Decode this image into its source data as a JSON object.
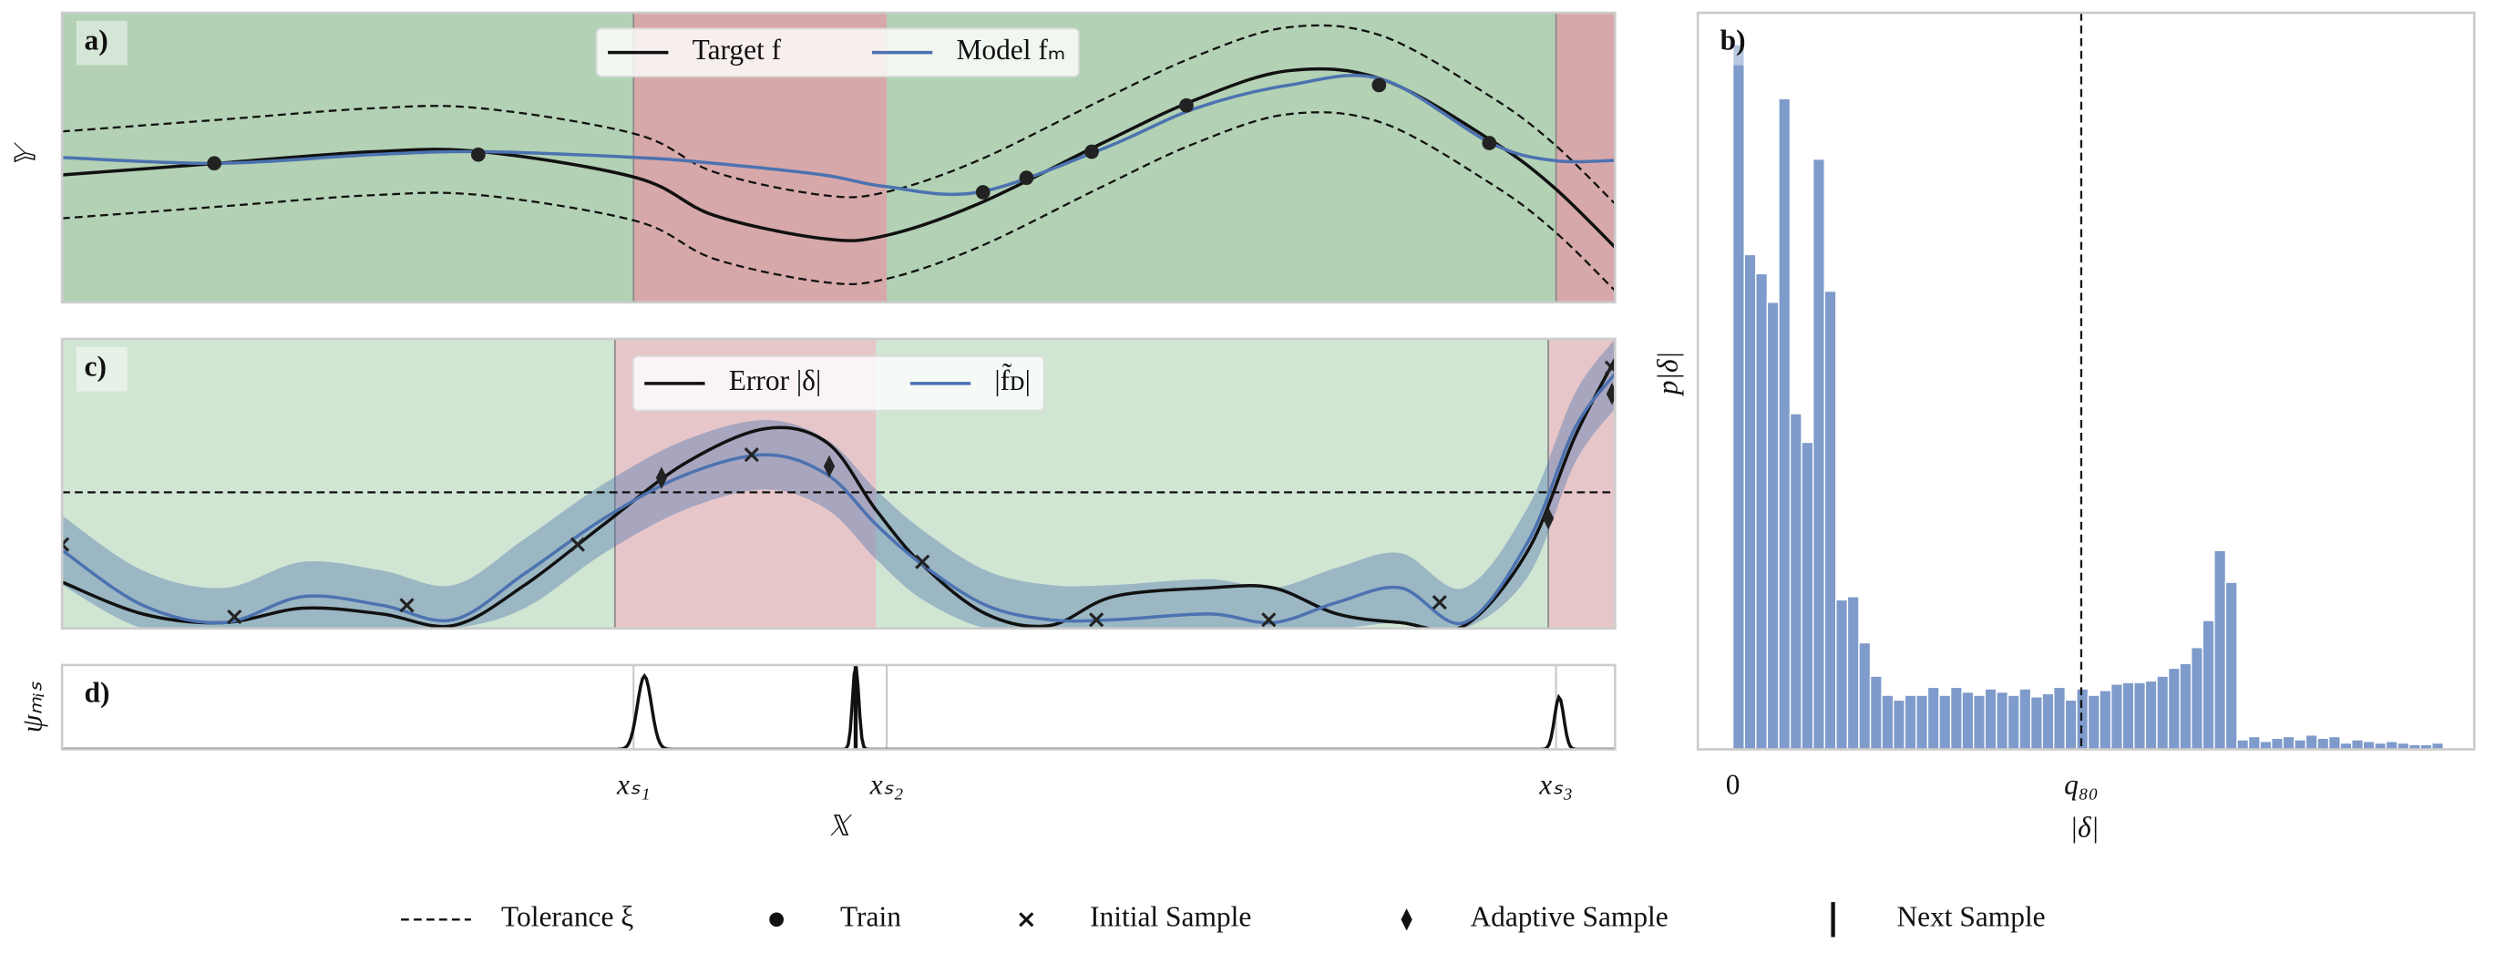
{
  "chart_data": [
    {
      "type": "line",
      "title": "a)",
      "ylabel": "𝕐",
      "xlim": [
        0,
        100
      ],
      "ylim": [
        0,
        100
      ],
      "background": "#b3d1b4",
      "legend": "upper center",
      "regions": [
        {
          "start": 36.8,
          "end": 53.1,
          "color": "#d7a8aa"
        },
        {
          "start": 96.2,
          "end": 100,
          "color": "#d7a8aa"
        }
      ],
      "x": [
        0,
        10,
        20,
        27,
        37,
        42,
        49,
        53,
        59,
        67,
        73,
        79,
        85,
        92,
        96,
        100
      ],
      "series": [
        {
          "name": "Target f",
          "color": "#111111",
          "values": [
            44,
            48,
            52,
            52,
            43,
            30,
            22,
            23,
            34,
            55,
            70,
            80,
            77,
            56,
            40,
            19
          ]
        },
        {
          "name": "Model fₘ",
          "color": "#4c72b0",
          "values": [
            50,
            48,
            51,
            52,
            50,
            48,
            44,
            40,
            38,
            53,
            67,
            75,
            77,
            55,
            49,
            49
          ]
        }
      ],
      "tolerance": 15,
      "train": {
        "x": [
          9.8,
          26.8,
          59.3,
          62.1,
          66.3,
          72.4,
          84.8,
          91.9
        ],
        "y": [
          48,
          51,
          38,
          43,
          52,
          68,
          75,
          55
        ]
      }
    },
    {
      "type": "line",
      "title": "c)",
      "xlim": [
        0,
        100
      ],
      "ylim": [
        0,
        100
      ],
      "background": "#d1e5d3",
      "legend": "upper center",
      "regions": [
        {
          "start": 35.6,
          "end": 52.4,
          "color": "#e6c6c9"
        },
        {
          "start": 95.7,
          "end": 100,
          "color": "#e6c6c9"
        }
      ],
      "x": [
        0,
        5.2,
        10.4,
        15.5,
        20.6,
        25.2,
        29.8,
        34.9,
        40.1,
        45.3,
        49.3,
        52.4,
        55.4,
        59.5,
        63.6,
        67.7,
        73.9,
        78,
        82.1,
        86.2,
        90.3,
        94.4,
        97.4,
        100
      ],
      "series": [
        {
          "name": "Error |δ|",
          "color": "#111111",
          "values": [
            16,
            5,
            2,
            7,
            5,
            1,
            15,
            36,
            57,
            69,
            64,
            41,
            22,
            5,
            1,
            11,
            14,
            14,
            5,
            2,
            1,
            27,
            66,
            93
          ]
        },
        {
          "name": "|f̃ᴅ|",
          "color": "#4c72b0",
          "values": [
            27,
            8,
            2,
            11,
            8,
            3,
            19,
            38,
            53,
            60,
            53,
            36,
            22,
            8,
            3,
            3,
            5,
            2,
            9,
            14,
            2,
            30,
            69,
            88
          ]
        }
      ],
      "uncertainty": 12,
      "threshold": 47,
      "initial_samples": {
        "x": [
          0,
          11.1,
          22.2,
          33.2,
          44.4,
          55.4,
          66.6,
          77.7,
          88.7,
          99.8
        ],
        "y": [
          29,
          4,
          8,
          29,
          60,
          23,
          3,
          3,
          9,
          90
        ]
      },
      "adaptive_samples": {
        "x": [
          38.6,
          49.4,
          95.7,
          99.8
        ],
        "y": [
          52,
          56,
          38,
          81
        ]
      }
    },
    {
      "type": "density",
      "title": "d)",
      "ylabel": "ψₘᵢₛ",
      "xlabel": "𝕏",
      "xlim": [
        0,
        100
      ],
      "ylim": [
        0,
        1
      ],
      "xticks": [
        {
          "value": 36.8,
          "label": "xₛ₁"
        },
        {
          "value": 53.1,
          "label": "xₛ₂"
        },
        {
          "value": 96.2,
          "label": "xₛ₃"
        }
      ],
      "peaks": [
        {
          "center": 37.5,
          "height": 0.87,
          "width": 0.45
        },
        {
          "center": 51.1,
          "height": 1.0,
          "width": 0.2
        },
        {
          "center": 96.4,
          "height": 0.62,
          "width": 0.3
        }
      ],
      "next_sample": 51.1
    },
    {
      "type": "histogram",
      "title": "b)",
      "ylabel": "p|δ|",
      "xlabel": "|δ|",
      "xlim": [
        -3.06,
        64.7
      ],
      "ylim": [
        0,
        463
      ],
      "color": "#7f9bcb",
      "xticks": [
        0,
        {
          "value": 30.4,
          "label": "q₈₀"
        }
      ],
      "bins": [
        0,
        1,
        2,
        3,
        4,
        5,
        6,
        7,
        8,
        9,
        10,
        11,
        12,
        13,
        14,
        15,
        16,
        17,
        18,
        19,
        20,
        21,
        22,
        23,
        24,
        25,
        26,
        27,
        28,
        29,
        30,
        31,
        32,
        33,
        34,
        35,
        36,
        37,
        38,
        39,
        40,
        41,
        42,
        43,
        44,
        45,
        46,
        47,
        48,
        49,
        50,
        51,
        52,
        53,
        54,
        55,
        56,
        57,
        58,
        59,
        60,
        61,
        62
      ],
      "values": [
        443,
        311,
        299,
        281,
        409,
        211,
        193,
        371,
        288,
        94,
        96,
        67,
        46,
        34,
        31,
        34,
        34,
        39,
        34,
        39,
        36,
        34,
        38,
        36,
        34,
        38,
        33,
        35,
        39,
        31,
        38,
        34,
        37,
        41,
        42,
        42,
        43,
        46,
        51,
        54,
        64,
        81,
        125,
        105,
        6,
        8,
        5,
        7,
        8,
        6,
        9,
        7,
        8,
        4,
        6,
        5,
        4,
        5,
        4,
        3,
        3,
        4
      ]
    }
  ],
  "legend": {
    "entries": [
      {
        "label": "Tolerance ξ",
        "marker": "dashed"
      },
      {
        "label": "Train",
        "marker": "dot"
      },
      {
        "label": "Initial Sample",
        "marker": "cross"
      },
      {
        "label": "Adaptive Sample",
        "marker": "diamond"
      },
      {
        "label": "Next Sample",
        "marker": "bar"
      }
    ]
  }
}
